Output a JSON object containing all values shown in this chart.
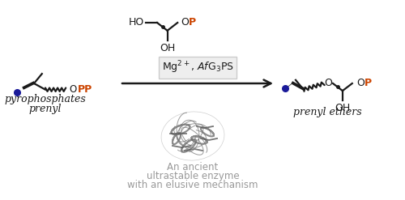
{
  "bg_color": "#ffffff",
  "black": "#1a1a1a",
  "orange": "#cc4400",
  "blue": "#1a1a99",
  "gray_text": "#999999",
  "substrate_label1": "prenyl",
  "substrate_label2": "pyrophosphates",
  "product_label": "prenyl ethers",
  "enzyme_desc1": "An ancient",
  "enzyme_desc2": "ultrastable enzyme",
  "enzyme_desc3": "with an elusive mechanism"
}
